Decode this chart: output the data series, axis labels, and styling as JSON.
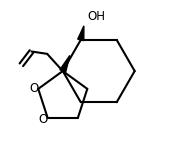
{
  "background_color": "#ffffff",
  "line_color": "#000000",
  "line_width": 1.5,
  "text_color": "#000000",
  "OH_label": "OH",
  "font_size": 8.5,
  "fig_width": 1.74,
  "fig_height": 1.46,
  "dpi": 100,
  "xlim": [
    -0.75,
    1.05
  ],
  "ylim": [
    -1.05,
    0.8
  ]
}
